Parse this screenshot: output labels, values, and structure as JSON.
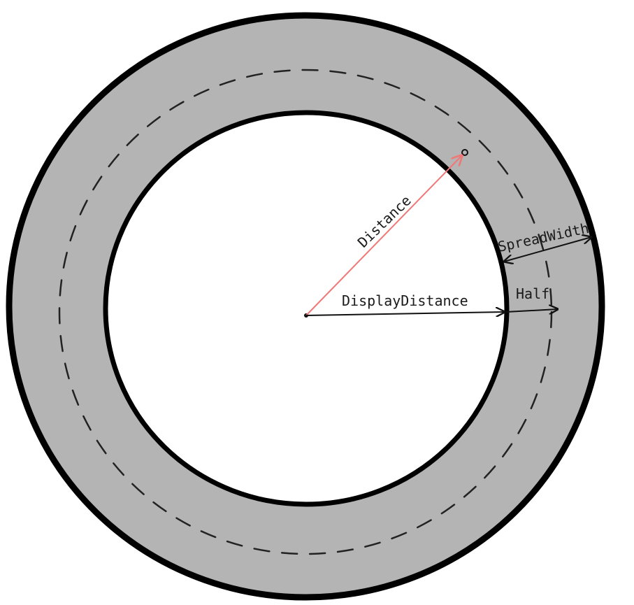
{
  "diagram": {
    "labels": {
      "distance": "Distance",
      "display_distance": "DisplayDistance",
      "spread_width": "SpreadWidth",
      "half": "Half"
    },
    "colors": {
      "ring_fill": "#b4b4b4",
      "outline": "#000000",
      "inner_fill": "#ffffff",
      "distance_arrow": "#f07878",
      "dashed_circle": "#222222"
    }
  }
}
